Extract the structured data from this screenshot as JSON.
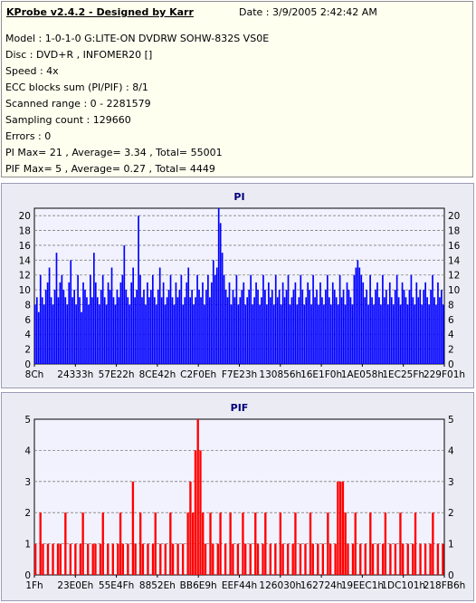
{
  "info": {
    "title": "KProbe v2.4.2 - Designed by Karr",
    "date": "Date : 3/9/2005 2:42:42 AM",
    "lines": [
      "Model : 1-0-1-0 G:LITE-ON DVDRW SOHW-832S  VS0E",
      "Disc : DVD+R , INFOMER20 []",
      "Speed : 4x",
      "ECC blocks sum (PI/PIF) : 8/1",
      "Scanned range : 0 - 2281579",
      "Sampling count : 129660",
      "Errors : 0",
      "PI Max= 21 , Average= 3.34 , Total= 55001",
      "PIF Max= 5 , Average= 0.27 , Total= 4449"
    ]
  },
  "colors": {
    "pi": "#0000ff",
    "pif": "#ff0000",
    "plot_bg": "#f2f2fe",
    "panel_bg": "#ebebf4",
    "info_bg": "#fffff0",
    "grid": "#808080",
    "title": "#00007a"
  },
  "chart_data": [
    {
      "type": "bar",
      "title": "PI",
      "ylim": [
        0,
        21
      ],
      "yticks": [
        0,
        2,
        4,
        6,
        8,
        10,
        12,
        14,
        16,
        18,
        20
      ],
      "xticks": [
        "8Ch",
        "24333h",
        "57E22h",
        "8CE42h",
        "C2F0Eh",
        "F7E23h",
        "130856h",
        "16E1F0h",
        "1AE058h",
        "1EC25Fh",
        "229F01h"
      ],
      "grid": "horizontal dashed",
      "series": [
        {
          "values": [
            8,
            9,
            7,
            12,
            9,
            8,
            10,
            11,
            13,
            9,
            8,
            10,
            15,
            9,
            11,
            12,
            10,
            9,
            8,
            11,
            14,
            9,
            10,
            8,
            12,
            9,
            7,
            11,
            10,
            9,
            8,
            12,
            9,
            15,
            11,
            9,
            8,
            10,
            12,
            9,
            8,
            11,
            10,
            13,
            9,
            8,
            10,
            9,
            11,
            12,
            16,
            10,
            9,
            8,
            11,
            13,
            9,
            10,
            20,
            12,
            9,
            10,
            8,
            11,
            9,
            10,
            12,
            9,
            8,
            10,
            13,
            9,
            11,
            8,
            9,
            10,
            12,
            9,
            8,
            11,
            9,
            10,
            12,
            8,
            9,
            11,
            13,
            9,
            10,
            8,
            9,
            12,
            10,
            9,
            11,
            8,
            10,
            12,
            9,
            11,
            14,
            12,
            13,
            21,
            19,
            15,
            12,
            10,
            9,
            11,
            8,
            10,
            9,
            12,
            8,
            9,
            10,
            11,
            8,
            9,
            10,
            12,
            8,
            9,
            11,
            10,
            8,
            9,
            12,
            10,
            8,
            11,
            9,
            10,
            8,
            12,
            9,
            10,
            8,
            11,
            9,
            10,
            12,
            8,
            9,
            10,
            11,
            8,
            9,
            12,
            10,
            8,
            9,
            11,
            10,
            8,
            12,
            9,
            10,
            8,
            11,
            9,
            8,
            10,
            12,
            9,
            8,
            11,
            10,
            9,
            8,
            12,
            9,
            10,
            8,
            11,
            10,
            9,
            8,
            12,
            13,
            14,
            13,
            12,
            11,
            9,
            10,
            8,
            12,
            9,
            8,
            10,
            11,
            9,
            8,
            12,
            9,
            10,
            8,
            11,
            9,
            8,
            10,
            12,
            9,
            8,
            11,
            10,
            9,
            8,
            10,
            12,
            9,
            8,
            11,
            9,
            10,
            8,
            10,
            11,
            9,
            8,
            10,
            12,
            9,
            8,
            11,
            9,
            10,
            8
          ]
        }
      ]
    },
    {
      "type": "bar",
      "title": "PIF",
      "ylim": [
        0,
        5
      ],
      "yticks": [
        0,
        1,
        2,
        3,
        4,
        5
      ],
      "xticks": [
        "1Fh",
        "23E0Eh",
        "55E4Fh",
        "8852Eh",
        "BB6E9h",
        "EEF44h",
        "126030h",
        "162724h",
        "19EEC1h",
        "1DC101h",
        "218FB6h"
      ],
      "grid": "horizontal dashed",
      "series": [
        {
          "values": [
            1,
            0,
            2,
            1,
            0,
            1,
            0,
            1,
            0,
            1,
            1,
            0,
            2,
            0,
            1,
            0,
            1,
            0,
            1,
            2,
            0,
            1,
            0,
            1,
            1,
            0,
            1,
            2,
            0,
            1,
            0,
            1,
            0,
            1,
            2,
            1,
            0,
            1,
            0,
            3,
            1,
            0,
            2,
            1,
            0,
            1,
            0,
            1,
            2,
            0,
            1,
            0,
            1,
            0,
            2,
            1,
            0,
            1,
            0,
            1,
            0,
            2,
            3,
            2,
            4,
            5,
            4,
            2,
            1,
            0,
            2,
            1,
            0,
            1,
            2,
            0,
            1,
            0,
            2,
            1,
            0,
            1,
            0,
            2,
            1,
            0,
            1,
            0,
            2,
            1,
            0,
            1,
            2,
            0,
            1,
            0,
            1,
            0,
            2,
            1,
            0,
            1,
            0,
            1,
            2,
            0,
            1,
            0,
            1,
            0,
            2,
            1,
            0,
            1,
            0,
            1,
            0,
            2,
            1,
            0,
            1,
            3,
            3,
            3,
            2,
            1,
            0,
            1,
            2,
            0,
            1,
            0,
            1,
            0,
            2,
            1,
            0,
            1,
            0,
            1,
            2,
            0,
            1,
            0,
            1,
            0,
            2,
            1,
            0,
            1,
            0,
            1,
            2,
            0,
            1,
            0,
            1,
            0,
            1,
            2,
            0,
            1,
            0,
            1
          ]
        }
      ]
    }
  ]
}
